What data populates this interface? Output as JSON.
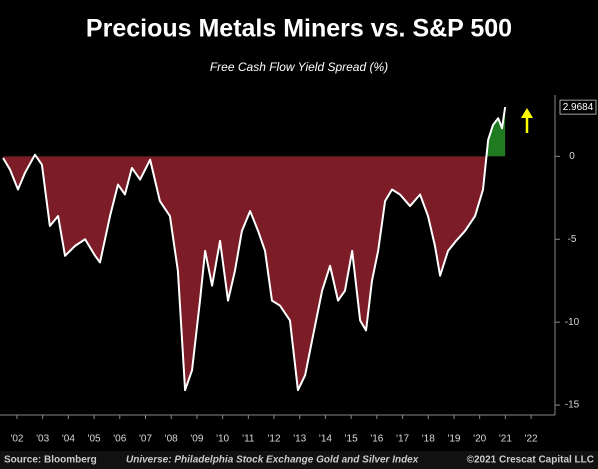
{
  "chart_data": {
    "type": "area",
    "title": "Precious Metals Miners vs. S&P 500",
    "subtitle": "Free Cash Flow Yield Spread (%)",
    "source": "Source: Bloomberg",
    "note": "Universe: Philadelphia Stock Exchange Gold and Silver Index",
    "credit": "©2021 Crescat Capital LLC",
    "x": [
      2001.46,
      2001.73,
      2002.04,
      2002.31,
      2002.7,
      2002.97,
      2003.28,
      2003.6,
      2003.87,
      2004.26,
      2004.65,
      2005.04,
      2005.23,
      2005.62,
      2005.93,
      2006.2,
      2006.47,
      2006.79,
      2007.18,
      2007.56,
      2007.95,
      2008.26,
      2008.54,
      2008.81,
      2009.12,
      2009.32,
      2009.59,
      2009.9,
      2010.21,
      2010.48,
      2010.75,
      2011.07,
      2011.38,
      2011.65,
      2011.92,
      2012.23,
      2012.62,
      2012.93,
      2013.21,
      2013.48,
      2013.87,
      2014.18,
      2014.49,
      2014.76,
      2015.04,
      2015.35,
      2015.58,
      2015.81,
      2016.05,
      2016.32,
      2016.59,
      2016.9,
      2017.29,
      2017.68,
      2017.99,
      2018.26,
      2018.46,
      2018.77,
      2019.08,
      2019.43,
      2019.82,
      2020.13,
      2020.33,
      2020.52,
      2020.72,
      2020.87,
      2020.99
    ],
    "values": [
      -0.1,
      -0.8,
      -2,
      -1,
      0.1,
      -0.5,
      -4.2,
      -3.6,
      -6,
      -5.4,
      -5,
      -6,
      -6.4,
      -3.6,
      -1.7,
      -2.3,
      -0.7,
      -1.4,
      -0.2,
      -2.7,
      -3.6,
      -6.9,
      -14.1,
      -12.9,
      -8.7,
      -5.7,
      -7.8,
      -5.1,
      -8.7,
      -6.9,
      -4.5,
      -3.3,
      -4.5,
      -5.7,
      -8.7,
      -9,
      -9.9,
      -14.1,
      -13.2,
      -11.1,
      -8.1,
      -6.6,
      -8.7,
      -8.1,
      -5.7,
      -9.9,
      -10.5,
      -7.5,
      -5.7,
      -2.7,
      -2,
      -2.3,
      -3,
      -2.3,
      -3.6,
      -5.4,
      -7.2,
      -5.7,
      -5.1,
      -4.5,
      -3.6,
      -2,
      1,
      1.9,
      2.3,
      1.7,
      2.9684
    ],
    "color": "#ffffff",
    "negative_color": "#7b1c26",
    "positive_color": "#1f7a22",
    "xlim": [
      2001.34,
      2022.93
    ],
    "xticks": [
      {
        "value": 2002,
        "label": "'02"
      },
      {
        "value": 2003,
        "label": "'03"
      },
      {
        "value": 2004,
        "label": "'04"
      },
      {
        "value": 2005,
        "label": "'05"
      },
      {
        "value": 2006,
        "label": "'06"
      },
      {
        "value": 2007,
        "label": "'07"
      },
      {
        "value": 2008,
        "label": "'08"
      },
      {
        "value": 2009,
        "label": "'09"
      },
      {
        "value": 2010,
        "label": "'10"
      },
      {
        "value": 2011,
        "label": "'11"
      },
      {
        "value": 2012,
        "label": "'12"
      },
      {
        "value": 2013,
        "label": "'13"
      },
      {
        "value": 2014,
        "label": "'14"
      },
      {
        "value": 2015,
        "label": "'15"
      },
      {
        "value": 2016,
        "label": "'16"
      },
      {
        "value": 2017,
        "label": "'17"
      },
      {
        "value": 2018,
        "label": "'18"
      },
      {
        "value": 2019,
        "label": "'19"
      },
      {
        "value": 2020,
        "label": "'20"
      },
      {
        "value": 2021,
        "label": "'21"
      },
      {
        "value": 2022,
        "label": "'22"
      }
    ],
    "ylim": [
      -15.6,
      3.7
    ],
    "yticks": [
      0,
      -5,
      -10,
      -15
    ]
  }
}
